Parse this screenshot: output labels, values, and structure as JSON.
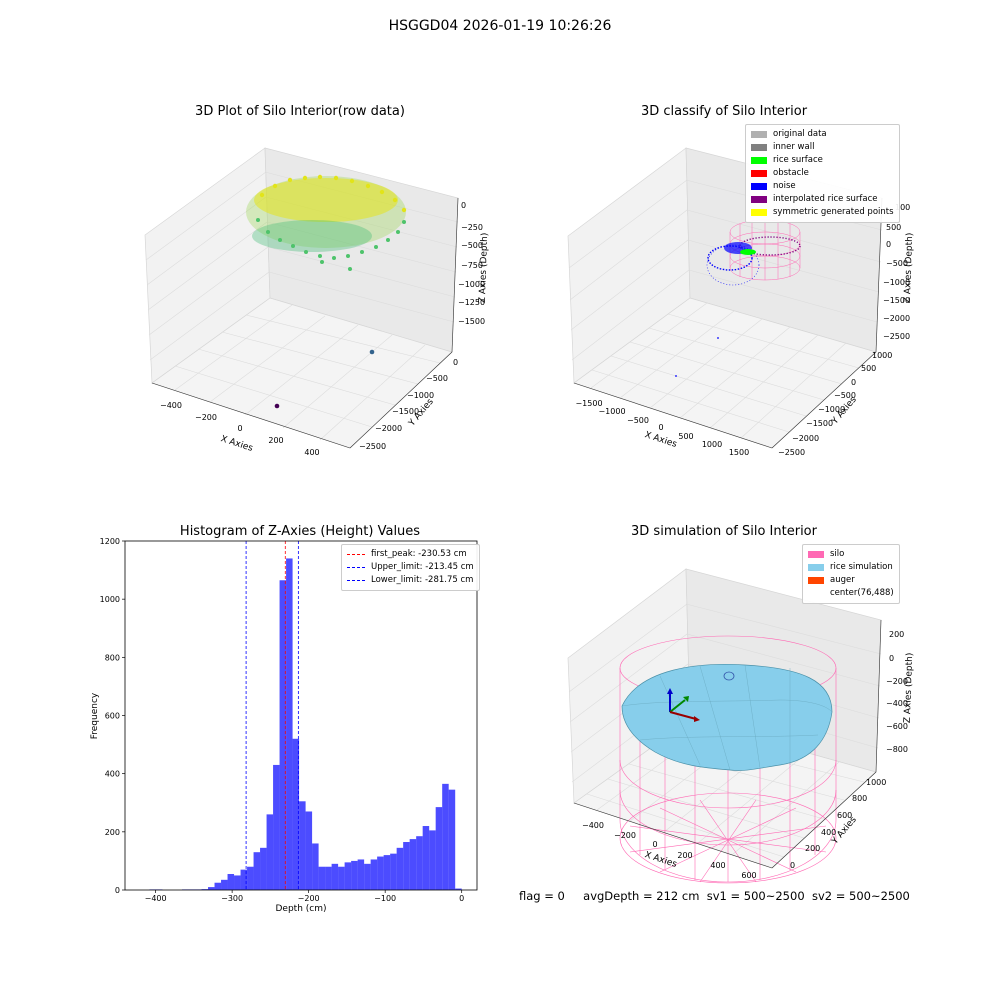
{
  "suptitle": "HSGGD04 2026-01-19 10:26:26",
  "panels": {
    "raw": {
      "title": "3D Plot of Silo Interior(row data)",
      "xlabel": "X Axies",
      "ylabel": "Y Axies",
      "zlabel": "Z Axies (Depth)",
      "xticks": [
        "−400",
        "−200",
        "0",
        "200",
        "400"
      ],
      "yticks": [
        "0",
        "−500",
        "−1000",
        "−1500",
        "−2000",
        "−2500"
      ],
      "zticks": [
        "0",
        "−250",
        "−500",
        "−750",
        "−1000",
        "−1250",
        "−1500"
      ]
    },
    "classify": {
      "title": "3D classify of Silo Interior",
      "xlabel": "X Axies",
      "ylabel": "Y Axies",
      "zlabel": "Z Axies (Depth)",
      "xticks": [
        "−1500",
        "−1000",
        "−500",
        "0",
        "500",
        "1000",
        "1500"
      ],
      "yticks": [
        "1000",
        "500",
        "0",
        "−500",
        "−1000",
        "−1500",
        "−2000",
        "−2500"
      ],
      "zticks": [
        "500",
        "0",
        "−500",
        "−1000",
        "−1500",
        "−2000",
        "−2500"
      ],
      "zticks_partial": "100",
      "legend": [
        {
          "label": "original data",
          "color": "#b0b0b0"
        },
        {
          "label": "inner wall",
          "color": "#808080"
        },
        {
          "label": "rice surface",
          "color": "#00ff00"
        },
        {
          "label": "obstacle",
          "color": "#ff0000"
        },
        {
          "label": "noise",
          "color": "#0000ff"
        },
        {
          "label": "interpolated rice surface",
          "color": "#800080"
        },
        {
          "label": "symmetric generated points",
          "color": "#ffff00"
        }
      ]
    },
    "simulation": {
      "title": "3D simulation of Silo Interior",
      "xlabel": "X Axies",
      "ylabel": "Y Axies",
      "zlabel": "Z Axies (Depth)",
      "xticks": [
        "−400",
        "−200",
        "0",
        "200",
        "400",
        "600"
      ],
      "yticks": [
        "0",
        "200",
        "400",
        "600",
        "800",
        "1000"
      ],
      "zticks": [
        "200",
        "0",
        "−200",
        "−400",
        "−600",
        "−800"
      ],
      "legend": [
        {
          "label": "silo",
          "color": "#ff69b4"
        },
        {
          "label": "rice simulation",
          "color": "#87ceeb"
        },
        {
          "label": "auger",
          "color": "#ff4500"
        },
        {
          "label": "center(76,488)",
          "color": ""
        }
      ]
    }
  },
  "chart_data": [
    {
      "type": "bar",
      "title": "Histogram of Z-Axies (Height) Values",
      "xlabel": "Depth (cm)",
      "ylabel": "Frequency",
      "xlim": [
        -440,
        20
      ],
      "ylim": [
        0,
        1200
      ],
      "xticks": [
        -400,
        -300,
        -200,
        -100,
        0
      ],
      "yticks": [
        0,
        200,
        400,
        600,
        800,
        1000,
        1200
      ],
      "bar_color": "#0000ff",
      "bin_width": 8.5,
      "bins_start": [
        -408,
        -399.5,
        -391,
        -382.5,
        -374,
        -365.5,
        -357,
        -348.5,
        -340,
        -331.5,
        -323,
        -314.5,
        -306,
        -297.5,
        -289,
        -280.5,
        -272,
        -263.5,
        -255,
        -246.5,
        -238,
        -229.5,
        -221,
        -212.5,
        -204,
        -195.5,
        -187,
        -178.5,
        -170,
        -161.5,
        -153,
        -144.5,
        -136,
        -127.5,
        -119,
        -110.5,
        -102,
        -93.5,
        -85,
        -76.5,
        -68,
        -59.5,
        -51,
        -42.5,
        -34,
        -25.5,
        -17,
        -8.5,
        0
      ],
      "counts": [
        2,
        2,
        0,
        0,
        0,
        2,
        2,
        2,
        3,
        10,
        25,
        35,
        55,
        50,
        70,
        80,
        130,
        145,
        260,
        430,
        1065,
        1140,
        520,
        305,
        270,
        160,
        80,
        80,
        90,
        80,
        95,
        100,
        105,
        90,
        105,
        115,
        120,
        125,
        145,
        165,
        175,
        185,
        220,
        205,
        285,
        365,
        345,
        5,
        0
      ],
      "lines": [
        {
          "label": "first_peak: -230.53 cm",
          "x": -230.53,
          "color": "#ff0000"
        },
        {
          "label": "Upper_limit: -213.45 cm",
          "x": -213.45,
          "color": "#0000ff"
        },
        {
          "label": "Lower_limit: -281.75 cm",
          "x": -281.75,
          "color": "#0000ff"
        }
      ]
    }
  ],
  "status": {
    "flag": "flag = 0",
    "avg": "avgDepth = 212 cm",
    "sv1": "sv1 = 500~2500",
    "sv2": "sv2 = 500~2500"
  }
}
